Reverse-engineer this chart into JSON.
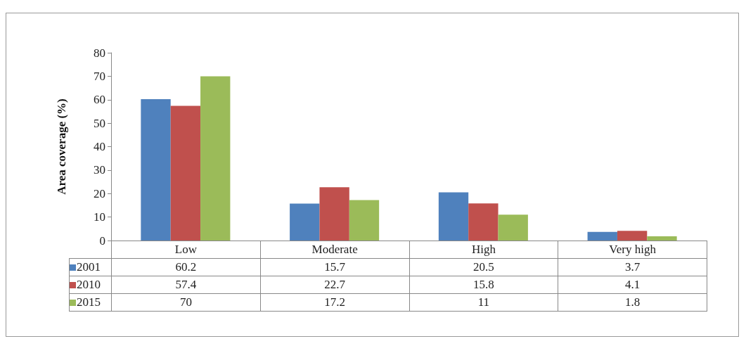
{
  "chart_data": {
    "type": "bar",
    "ylabel": "Area coverage (%)",
    "categories": [
      "Low",
      "Moderate",
      "High",
      "Very high"
    ],
    "series": [
      {
        "name": "2001",
        "color": "#4f81bd",
        "values": [
          60.2,
          15.7,
          20.5,
          3.7
        ]
      },
      {
        "name": "2010",
        "color": "#c0504d",
        "values": [
          57.4,
          22.7,
          15.8,
          4.1
        ]
      },
      {
        "name": "2015",
        "color": "#9bbb59",
        "values": [
          70,
          17.2,
          11,
          1.8
        ]
      }
    ],
    "ylim": [
      0,
      80
    ],
    "yticks": [
      0,
      10,
      20,
      30,
      40,
      50,
      60,
      70,
      80
    ],
    "grid": false,
    "legend": "bottom",
    "data_labels": true
  }
}
